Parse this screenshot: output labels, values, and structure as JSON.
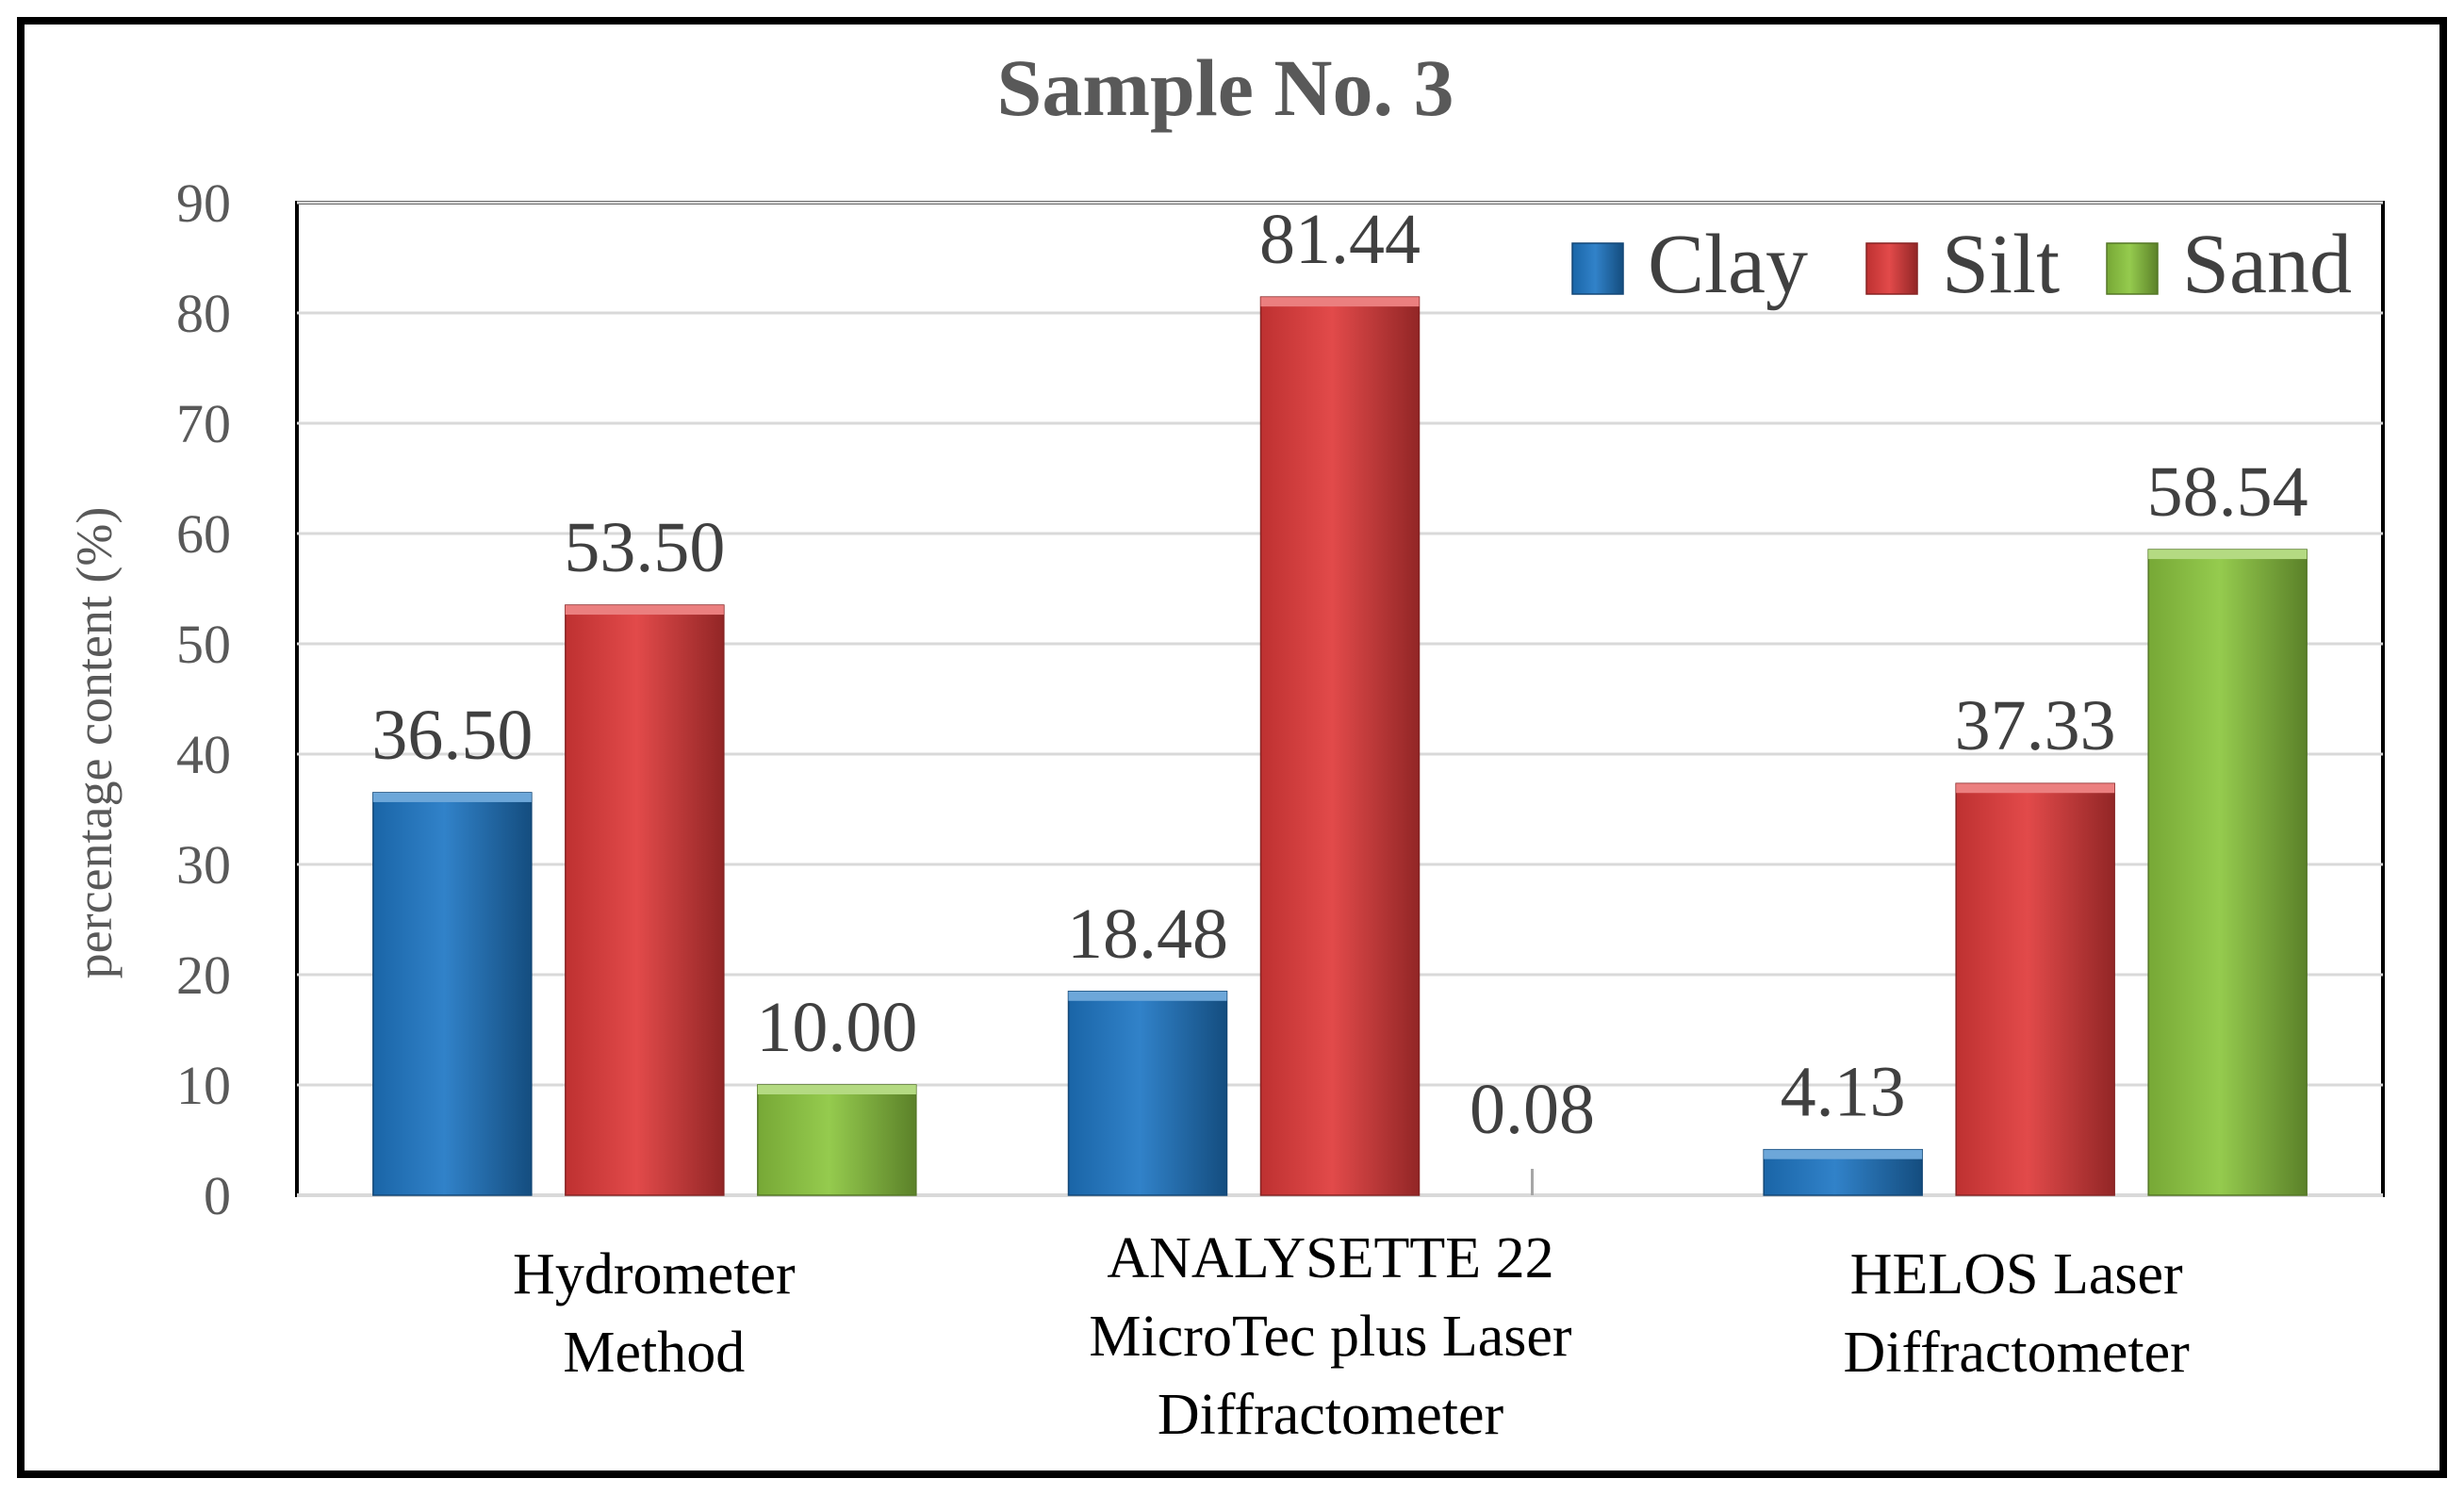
{
  "chart_data": {
    "type": "bar",
    "title": "Sample No. 3",
    "xlabel": "",
    "ylabel": "percentage content (%)",
    "ylim": [
      0,
      90
    ],
    "yticks": [
      "0",
      "10",
      "20",
      "30",
      "40",
      "50",
      "60",
      "70",
      "80",
      "90"
    ],
    "grid": true,
    "legend_position": "top-right",
    "categories": [
      [
        "Hydrometer",
        "Method"
      ],
      [
        "ANALYSETTE 22",
        "MicroTec plus Laser",
        "Diffractometer"
      ],
      [
        "HELOS Laser",
        "Diffractometer"
      ]
    ],
    "series": [
      {
        "name": "Clay",
        "color": "#1f77c4",
        "values": [
          36.5,
          18.48,
          4.13
        ],
        "labels": [
          "36.50",
          "18.48",
          "4.13"
        ]
      },
      {
        "name": "Silt",
        "color": "#e03a3a",
        "values": [
          53.5,
          81.44,
          37.33
        ],
        "labels": [
          "53.50",
          "81.44",
          "37.33"
        ]
      },
      {
        "name": "Sand",
        "color": "#8cc63f",
        "values": [
          10.0,
          0.08,
          58.54
        ],
        "labels": [
          "10.00",
          "0.08",
          "58.54"
        ]
      }
    ]
  }
}
